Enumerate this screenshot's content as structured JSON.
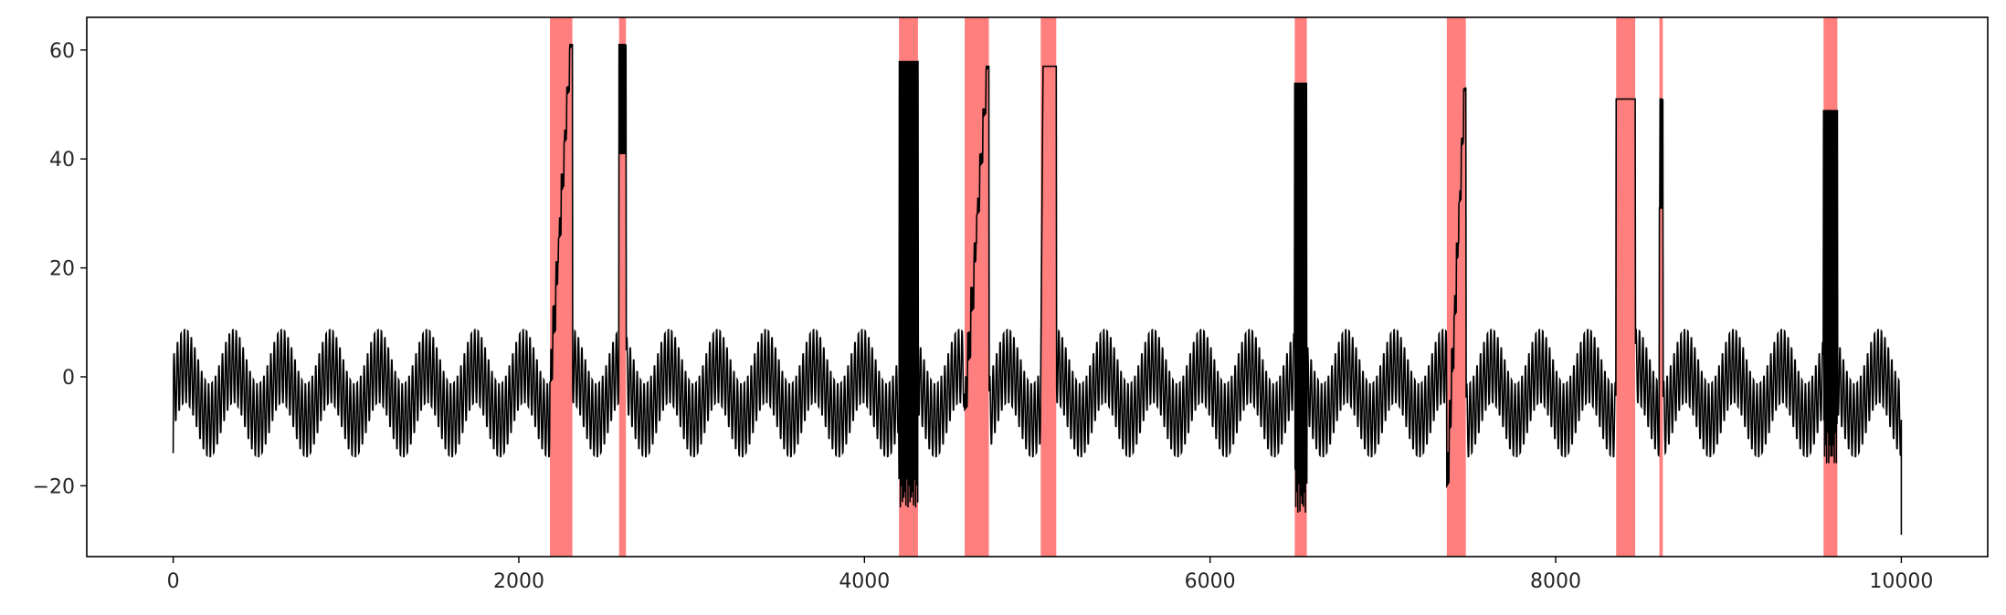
{
  "chart_data": {
    "type": "line",
    "title": "",
    "xlabel": "",
    "ylabel": "",
    "xlim": [
      -500,
      10500
    ],
    "ylim": [
      -33,
      66
    ],
    "xticks": [
      0,
      2000,
      4000,
      6000,
      8000,
      10000
    ],
    "xtick_labels": [
      "0",
      "2000",
      "4000",
      "6000",
      "8000",
      "10000"
    ],
    "yticks": [
      -20,
      0,
      20,
      40,
      60
    ],
    "ytick_labels": [
      "−20",
      "0",
      "20",
      "40",
      "60"
    ],
    "grid": false,
    "legend": "none",
    "line_color": "#000000",
    "band_color": "#ff0000",
    "series": [
      {
        "base_signal": {
          "x_start": 0,
          "x_end": 10000,
          "oscillation_period": 20,
          "oscillation_amplitude": 7,
          "envelope_period": 280,
          "envelope_amplitude": 5,
          "baseline": -3,
          "final_value": -29
        },
        "anomalies": [
          {
            "start": 2180,
            "end": 2310,
            "shape": "ramp",
            "level_start": 5,
            "level_end": 61
          },
          {
            "start": 2580,
            "end": 2620,
            "shape": "spike",
            "level": 61
          },
          {
            "start": 4200,
            "end": 4310,
            "shape": "dense",
            "level": 58,
            "low": -20
          },
          {
            "start": 4580,
            "end": 4720,
            "shape": "ramp",
            "level_start": 0,
            "level_end": 57
          },
          {
            "start": 5020,
            "end": 5110,
            "shape": "ramp-hold",
            "level_start": 0,
            "level_end": 57
          },
          {
            "start": 6490,
            "end": 6560,
            "shape": "dense",
            "level": 54,
            "low": -21
          },
          {
            "start": 7370,
            "end": 7480,
            "shape": "ramp",
            "level_start": -14,
            "level_end": 53
          },
          {
            "start": 8350,
            "end": 8460,
            "shape": "hold",
            "level": 51
          },
          {
            "start": 8600,
            "end": 8620,
            "shape": "spike",
            "level": 51
          },
          {
            "start": 9550,
            "end": 9630,
            "shape": "dense",
            "level": 49,
            "low": -12
          }
        ]
      }
    ]
  }
}
